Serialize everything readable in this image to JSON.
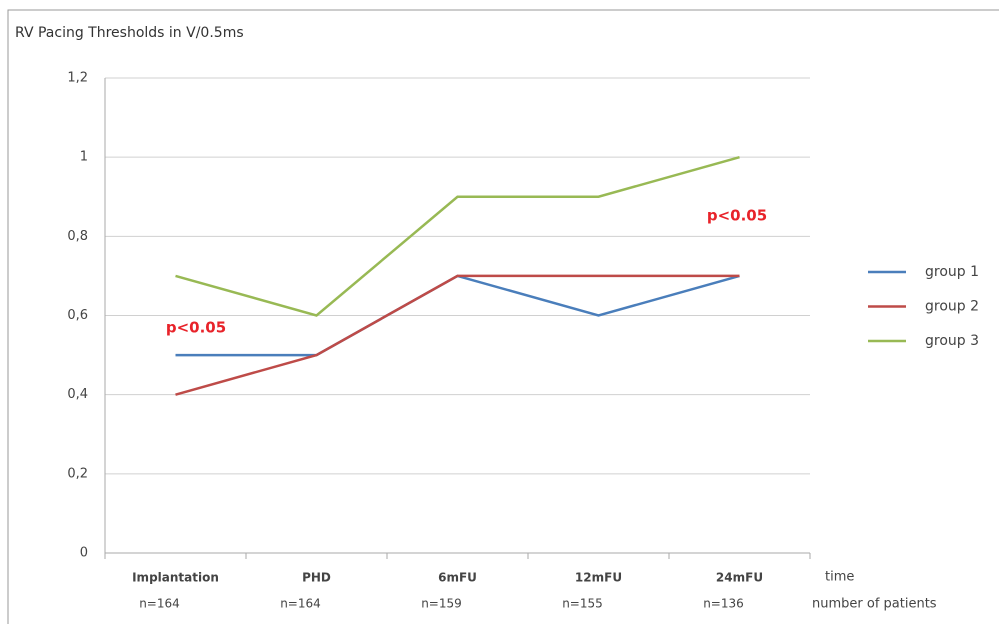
{
  "chart_data": {
    "type": "line",
    "title": "RV Pacing Thresholds in V/0.5ms",
    "categories": [
      "Implantation",
      "PHD",
      "6mFU",
      "12mFU",
      "24mFU"
    ],
    "patient_counts": [
      "n=164",
      "n=164",
      "n=159",
      "n=155",
      "n=136"
    ],
    "x_label": "time",
    "x_sublabel": "number of patients",
    "series": [
      {
        "name": "group 1",
        "color": "#4a7ebb",
        "values": [
          0.5,
          0.5,
          0.7,
          0.6,
          0.7
        ]
      },
      {
        "name": "group 2",
        "color": "#be4b48",
        "values": [
          0.4,
          0.5,
          0.7,
          0.7,
          0.7
        ]
      },
      {
        "name": "group 3",
        "color": "#98b954",
        "values": [
          0.7,
          0.6,
          0.9,
          0.9,
          1.0
        ]
      }
    ],
    "annotations": [
      "p<0.05",
      "p<0.05"
    ],
    "ylim": [
      0,
      1.2
    ],
    "yticks": [
      0,
      {
        "value": 0.2,
        "label": "0,2"
      },
      {
        "value": 0.4,
        "label": "0,4"
      },
      {
        "value": 0.6,
        "label": "0,6"
      },
      {
        "value": 0.8,
        "label": "0,8"
      },
      1,
      {
        "value": 1.2,
        "label": "1,2"
      }
    ],
    "grid": true,
    "legend": "right"
  }
}
